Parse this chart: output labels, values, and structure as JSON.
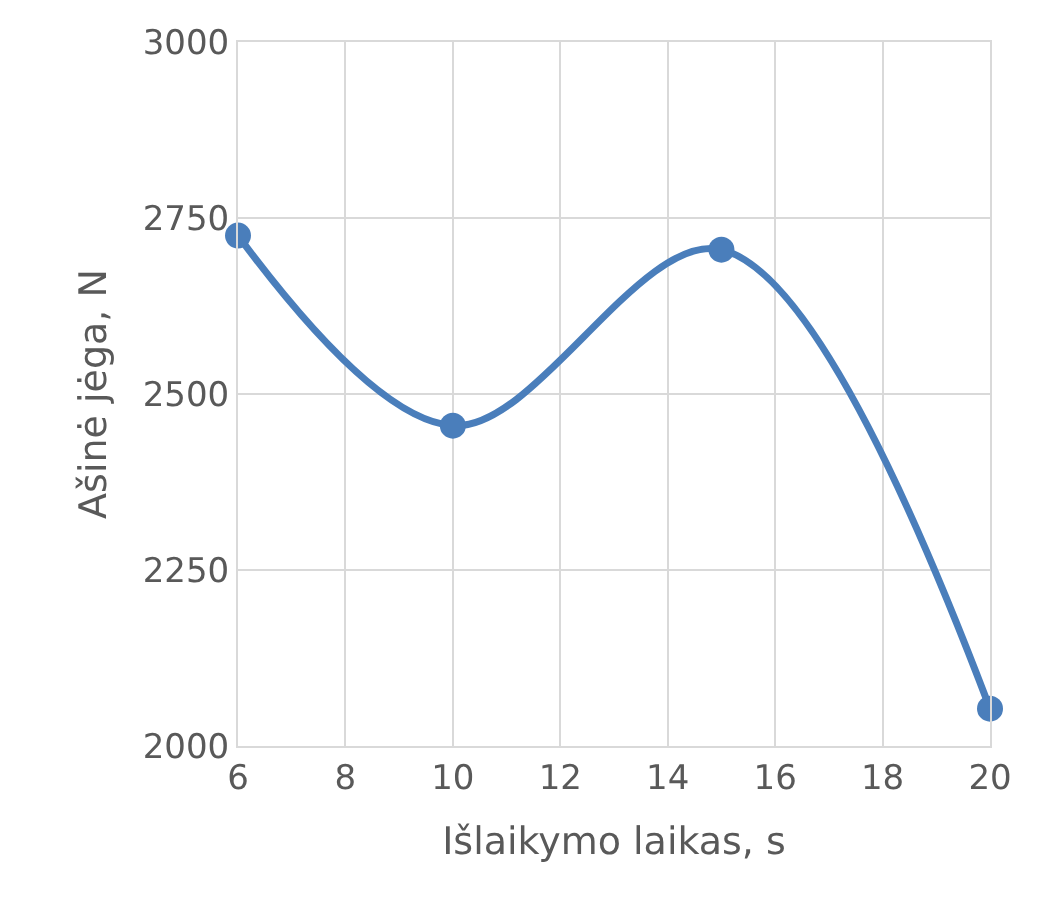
{
  "chart_data": {
    "type": "line",
    "xlabel": "Išlaikymo laikas, s",
    "ylabel": "Ašinė jėga, N",
    "x": [
      6,
      10,
      15,
      20
    ],
    "series": [
      {
        "color": "#4a7ebb",
        "values": [
          2725,
          2455,
          2705,
          2053
        ]
      }
    ],
    "xlim": [
      6,
      20
    ],
    "xticks": [
      6,
      8,
      10,
      12,
      14,
      16,
      18,
      20
    ],
    "ylim": [
      2000,
      3000
    ],
    "yticks": [
      2000,
      2250,
      2500,
      2750,
      3000
    ],
    "grid": true,
    "marker": "circle",
    "line_style": "solid"
  }
}
